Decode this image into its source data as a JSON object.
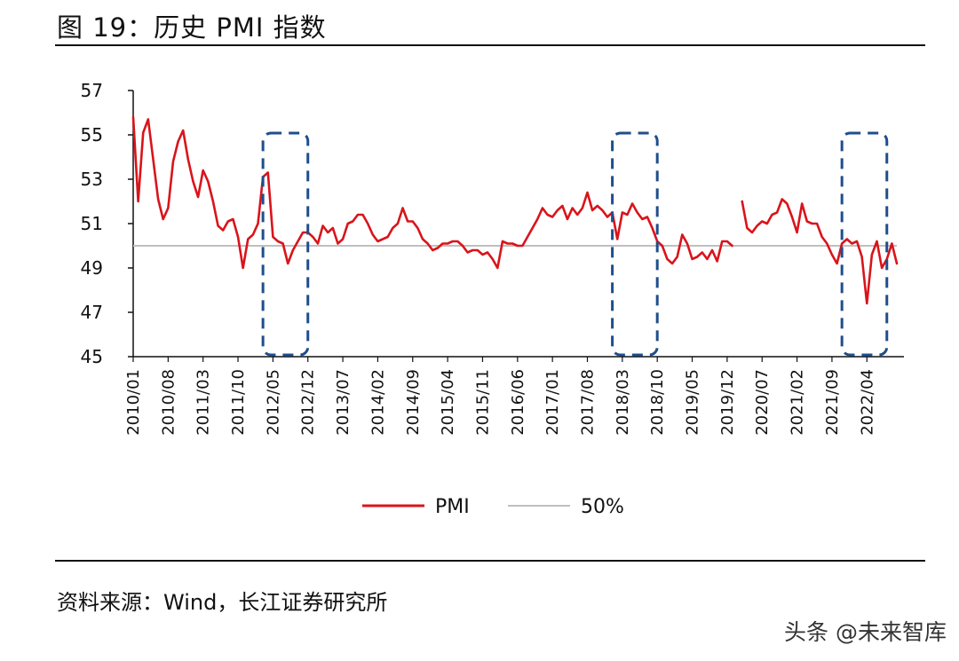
{
  "header": {
    "figure_title": "图 19：历史 PMI 指数"
  },
  "footer": {
    "source": "资料来源：Wind，长江证券研究所",
    "watermark": "头条 @未来智库"
  },
  "colors": {
    "pmi_line": "#d9141b",
    "ref_line": "#bfbfbf",
    "highlight_box": "#1f4e8c",
    "axis": "#111111"
  },
  "chart_data": {
    "type": "line",
    "title": "历史 PMI 指数",
    "xlabel": "",
    "ylabel": "",
    "ylim": [
      45,
      57
    ],
    "yticks": [
      "45",
      "47",
      "49",
      "51",
      "53",
      "55",
      "57"
    ],
    "x_tick_labels": [
      "2010/01",
      "2010/08",
      "2011/03",
      "2011/10",
      "2012/05",
      "2012/12",
      "2013/07",
      "2014/02",
      "2014/09",
      "2015/04",
      "2015/11",
      "2016/06",
      "2017/01",
      "2017/08",
      "2018/03",
      "2018/10",
      "2019/05",
      "2019/12",
      "2020/07",
      "2021/02",
      "2021/09",
      "2022/04"
    ],
    "start_month": "2010/01",
    "series": [
      {
        "name": "PMI",
        "values": [
          55.8,
          52.0,
          55.1,
          55.7,
          53.9,
          52.1,
          51.2,
          51.7,
          53.8,
          54.7,
          55.2,
          53.9,
          52.9,
          52.2,
          53.4,
          52.9,
          52.0,
          50.9,
          50.7,
          51.1,
          51.2,
          50.4,
          49.0,
          50.3,
          50.5,
          51.0,
          53.1,
          53.3,
          50.4,
          50.2,
          50.1,
          49.2,
          49.8,
          50.2,
          50.6,
          50.6,
          50.4,
          50.1,
          50.9,
          50.6,
          50.8,
          50.1,
          50.3,
          51.0,
          51.1,
          51.4,
          51.4,
          51.0,
          50.5,
          50.2,
          50.3,
          50.4,
          50.8,
          51.0,
          51.7,
          51.1,
          51.1,
          50.8,
          50.3,
          50.1,
          49.8,
          49.9,
          50.1,
          50.1,
          50.2,
          50.2,
          50.0,
          49.7,
          49.8,
          49.8,
          49.6,
          49.7,
          49.4,
          49.0,
          50.2,
          50.1,
          50.1,
          50.0,
          50.0,
          50.4,
          50.8,
          51.2,
          51.7,
          51.4,
          51.3,
          51.6,
          51.8,
          51.2,
          51.7,
          51.4,
          51.7,
          52.4,
          51.6,
          51.8,
          51.6,
          51.3,
          51.5,
          50.3,
          51.5,
          51.4,
          51.9,
          51.5,
          51.2,
          51.3,
          50.8,
          50.2,
          50.0,
          49.4,
          49.2,
          49.5,
          50.5,
          50.1,
          49.4,
          49.5,
          49.7,
          49.4,
          49.8,
          49.3,
          50.2,
          50.2,
          50.0,
          null,
          52.0,
          50.8,
          50.6,
          50.9,
          51.1,
          51.0,
          51.4,
          51.5,
          52.1,
          51.9,
          51.3,
          50.6,
          51.9,
          51.1,
          51.0,
          51.0,
          50.4,
          50.1,
          49.6,
          49.2,
          50.1,
          50.3,
          50.1,
          50.2,
          49.5,
          47.4,
          49.6,
          50.2,
          49.0,
          49.4,
          50.1,
          49.2
        ]
      },
      {
        "name": "50%",
        "values": [
          50,
          50
        ]
      }
    ],
    "highlight_ranges": [
      {
        "from": "2012/03",
        "to": "2012/12"
      },
      {
        "from": "2018/01",
        "to": "2018/10"
      },
      {
        "from": "2021/11",
        "to": "2022/08"
      }
    ],
    "legend": [
      "PMI",
      "50%"
    ],
    "legend_position": "bottom-center"
  }
}
